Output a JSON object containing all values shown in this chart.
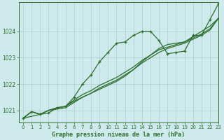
{
  "title": "Graphe pression niveau de la mer (hPa)",
  "bg_color": "#ceeaed",
  "grid_color": "#aaced2",
  "line_color": "#2d6e2d",
  "xlim": [
    -0.5,
    23
  ],
  "ylim": [
    1020.55,
    1025.1
  ],
  "yticks": [
    1021,
    1022,
    1023,
    1024
  ],
  "xticks": [
    0,
    1,
    2,
    3,
    4,
    5,
    6,
    7,
    8,
    9,
    10,
    11,
    12,
    13,
    14,
    15,
    16,
    17,
    18,
    19,
    20,
    21,
    22,
    23
  ],
  "series": [
    {
      "x": [
        0,
        1,
        2,
        3,
        4,
        5,
        6,
        7,
        8,
        9,
        10,
        11,
        12,
        13,
        14,
        15,
        16,
        17,
        18,
        19,
        20,
        21,
        22,
        23
      ],
      "y": [
        1020.7,
        1020.95,
        1020.85,
        1020.9,
        1021.1,
        1021.15,
        1021.5,
        1022.0,
        1022.35,
        1022.85,
        1023.2,
        1023.55,
        1023.6,
        1023.85,
        1024.0,
        1024.0,
        1023.65,
        1023.15,
        1023.2,
        1023.25,
        1023.85,
        1023.85,
        1024.45,
        1025.05
      ],
      "marker": true
    },
    {
      "x": [
        0,
        1,
        2,
        3,
        4,
        5,
        6,
        7,
        8,
        9,
        10,
        11,
        12,
        13,
        14,
        15,
        16,
        17,
        18,
        19,
        20,
        21,
        22,
        23
      ],
      "y": [
        1020.7,
        1020.95,
        1020.85,
        1021.0,
        1021.1,
        1021.15,
        1021.4,
        1021.6,
        1021.75,
        1021.95,
        1022.1,
        1022.25,
        1022.45,
        1022.65,
        1022.9,
        1023.1,
        1023.3,
        1023.4,
        1023.5,
        1023.6,
        1023.75,
        1023.9,
        1024.1,
        1024.5
      ],
      "marker": false
    },
    {
      "x": [
        0,
        1,
        2,
        3,
        4,
        5,
        6,
        7,
        8,
        9,
        10,
        11,
        12,
        13,
        14,
        15,
        16,
        17,
        18,
        19,
        20,
        21,
        22,
        23
      ],
      "y": [
        1020.7,
        1020.95,
        1020.85,
        1021.0,
        1021.05,
        1021.1,
        1021.3,
        1021.5,
        1021.65,
        1021.85,
        1022.0,
        1022.15,
        1022.35,
        1022.55,
        1022.8,
        1023.0,
        1023.2,
        1023.35,
        1023.45,
        1023.55,
        1023.7,
        1023.85,
        1024.05,
        1024.5
      ],
      "marker": false
    },
    {
      "x": [
        0,
        2,
        3,
        4,
        5,
        6,
        7,
        8,
        9,
        10,
        11,
        12,
        13,
        14,
        15,
        16,
        17,
        18,
        19,
        20,
        21,
        22,
        23
      ],
      "y": [
        1020.7,
        1020.85,
        1021.0,
        1021.1,
        1021.15,
        1021.35,
        1021.5,
        1021.65,
        1021.8,
        1021.95,
        1022.1,
        1022.3,
        1022.55,
        1022.85,
        1023.1,
        1023.35,
        1023.5,
        1023.55,
        1023.6,
        1023.8,
        1024.0,
        1024.2,
        1024.5
      ],
      "marker": false
    }
  ]
}
